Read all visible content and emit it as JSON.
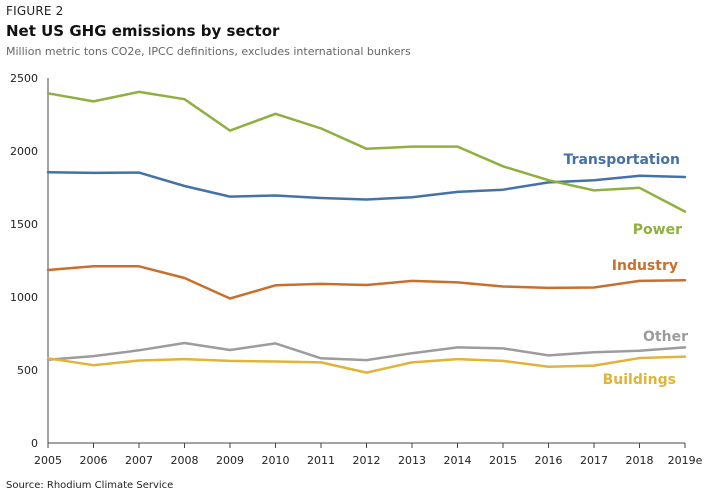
{
  "figure_label": "FIGURE 2",
  "source": "Source: Rhodium Climate Service",
  "chart_data": {
    "type": "line",
    "title": "Net US GHG emissions by sector",
    "subtitle": "Million metric tons CO2e, IPCC definitions, excludes international bunkers",
    "xlabel": "",
    "ylabel": "",
    "ylim": [
      0,
      2500
    ],
    "yticks": [
      0,
      500,
      1000,
      1500,
      2000,
      2500
    ],
    "grid": false,
    "categories": [
      "2005",
      "2006",
      "2007",
      "2008",
      "2009",
      "2010",
      "2011",
      "2012",
      "2013",
      "2014",
      "2015",
      "2016",
      "2017",
      "2018",
      "2019e"
    ],
    "series": [
      {
        "name": "Transportation",
        "color": "#4472a8",
        "values": [
          1855,
          1850,
          1852,
          1760,
          1688,
          1695,
          1678,
          1668,
          1683,
          1720,
          1735,
          1785,
          1800,
          1830,
          1822
        ]
      },
      {
        "name": "Power",
        "color": "#8fb03f",
        "values": [
          2395,
          2340,
          2405,
          2355,
          2140,
          2255,
          2155,
          2015,
          2030,
          2030,
          1895,
          1800,
          1730,
          1748,
          1585
        ]
      },
      {
        "name": "Industry",
        "color": "#c96f2e",
        "values": [
          1185,
          1210,
          1210,
          1130,
          990,
          1080,
          1090,
          1082,
          1110,
          1100,
          1072,
          1062,
          1065,
          1110,
          1115
        ]
      },
      {
        "name": "Other",
        "color": "#9c9c9c",
        "values": [
          570,
          595,
          635,
          685,
          637,
          682,
          580,
          568,
          615,
          655,
          648,
          600,
          622,
          632,
          655
        ]
      },
      {
        "name": "Buildings",
        "color": "#e0b43a",
        "values": [
          580,
          533,
          565,
          575,
          562,
          558,
          552,
          482,
          552,
          575,
          562,
          522,
          530,
          582,
          592
        ]
      }
    ]
  }
}
